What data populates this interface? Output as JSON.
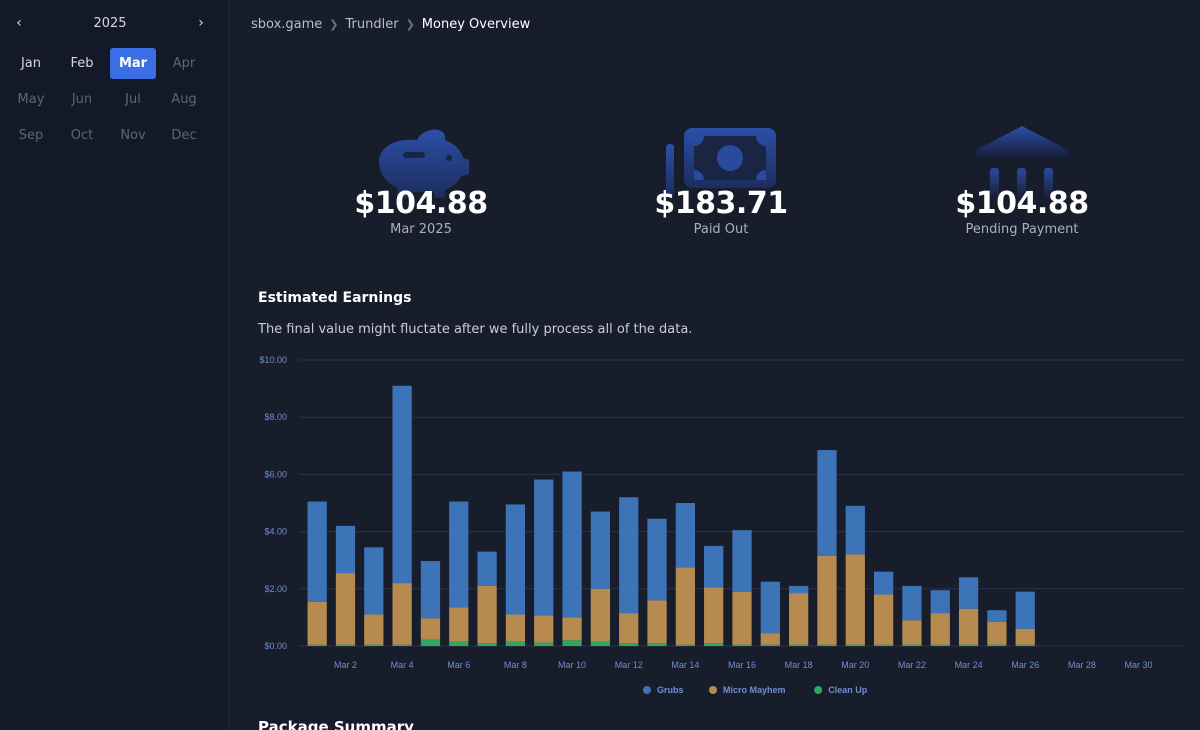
{
  "sidebar": {
    "year": "2025",
    "prev_icon": "chevron-left-icon",
    "next_icon": "chevron-right-icon",
    "months": [
      {
        "label": "Jan",
        "state": "enabled"
      },
      {
        "label": "Feb",
        "state": "enabled"
      },
      {
        "label": "Mar",
        "state": "active"
      },
      {
        "label": "Apr",
        "state": "disabled"
      },
      {
        "label": "May",
        "state": "disabled"
      },
      {
        "label": "Jun",
        "state": "disabled"
      },
      {
        "label": "Jul",
        "state": "disabled"
      },
      {
        "label": "Aug",
        "state": "disabled"
      },
      {
        "label": "Sep",
        "state": "disabled"
      },
      {
        "label": "Oct",
        "state": "disabled"
      },
      {
        "label": "Nov",
        "state": "disabled"
      },
      {
        "label": "Dec",
        "state": "disabled"
      }
    ]
  },
  "breadcrumb": {
    "items": [
      "sbox.game",
      "Trundler"
    ],
    "current": "Money Overview"
  },
  "stats": [
    {
      "icon": "piggy-bank-icon",
      "value": "$104.88",
      "label": "Mar 2025"
    },
    {
      "icon": "cash-icon",
      "value": "$183.71",
      "label": "Paid Out"
    },
    {
      "icon": "bank-icon",
      "value": "$104.88",
      "label": "Pending Payment"
    }
  ],
  "earnings": {
    "title": "Estimated Earnings",
    "description": "The final value might fluctate after we fully process all of the data."
  },
  "next_section": {
    "title": "Package Summary"
  },
  "colors": {
    "accent": "#3b6de5",
    "icon": "#2a4a9e",
    "grubs": "#3d74b8",
    "micro_mayhem": "#b78a4f",
    "clean_up": "#2ea85f",
    "grid": "#2b3248"
  },
  "chart_data": {
    "type": "bar",
    "stacked": true,
    "title": "Estimated Earnings",
    "xlabel": "",
    "ylabel": "",
    "ylim": [
      0,
      10
    ],
    "yticks": [
      "$0.00",
      "$2.00",
      "$4.00",
      "$6.00",
      "$8.00",
      "$10.00"
    ],
    "ytick_values": [
      0,
      2,
      4,
      6,
      8,
      10
    ],
    "categories": [
      1,
      2,
      3,
      4,
      5,
      6,
      7,
      8,
      9,
      10,
      11,
      12,
      13,
      14,
      15,
      16,
      17,
      18,
      19,
      20,
      21,
      22,
      23,
      24,
      25,
      26,
      27,
      28,
      29,
      30,
      31
    ],
    "xtick_labels": [
      "Mar 2",
      "Mar 4",
      "Mar 6",
      "Mar 8",
      "Mar 10",
      "Mar 12",
      "Mar 14",
      "Mar 16",
      "Mar 18",
      "Mar 20",
      "Mar 22",
      "Mar 24",
      "Mar 26",
      "Mar 28",
      "Mar 30"
    ],
    "xtick_days": [
      2,
      4,
      6,
      8,
      10,
      12,
      14,
      16,
      18,
      20,
      22,
      24,
      26,
      28,
      30
    ],
    "legend_position": "bottom",
    "series": [
      {
        "name": "Clean Up",
        "color": "#2ea85f",
        "values": [
          0.05,
          0.05,
          0.05,
          0.05,
          0.22,
          0.15,
          0.1,
          0.15,
          0.12,
          0.2,
          0.15,
          0.1,
          0.1,
          0.05,
          0.1,
          0.05,
          0.05,
          0.05,
          0.05,
          0.05,
          0.05,
          0.05,
          0.05,
          0.05,
          0.05,
          0.05,
          0,
          0,
          0,
          0,
          0
        ]
      },
      {
        "name": "Micro Mayhem",
        "color": "#b78a4f",
        "values": [
          1.5,
          2.5,
          1.05,
          2.15,
          0.75,
          1.2,
          2.0,
          0.95,
          0.95,
          0.8,
          1.85,
          1.05,
          1.5,
          2.7,
          1.95,
          1.85,
          0.4,
          1.8,
          3.1,
          3.15,
          1.75,
          0.85,
          1.1,
          1.25,
          0.8,
          0.55,
          0,
          0,
          0,
          0,
          0
        ]
      },
      {
        "name": "Grubs",
        "color": "#3d74b8",
        "values": [
          3.5,
          1.65,
          2.35,
          6.9,
          2.0,
          3.7,
          1.2,
          3.85,
          4.75,
          5.1,
          2.7,
          4.05,
          2.85,
          2.25,
          1.45,
          2.15,
          1.8,
          0.25,
          3.7,
          1.7,
          0.8,
          1.2,
          0.8,
          1.1,
          0.4,
          1.3,
          0,
          0,
          0,
          0,
          0
        ]
      }
    ],
    "legend": [
      "Grubs",
      "Micro Mayhem",
      "Clean Up"
    ]
  }
}
